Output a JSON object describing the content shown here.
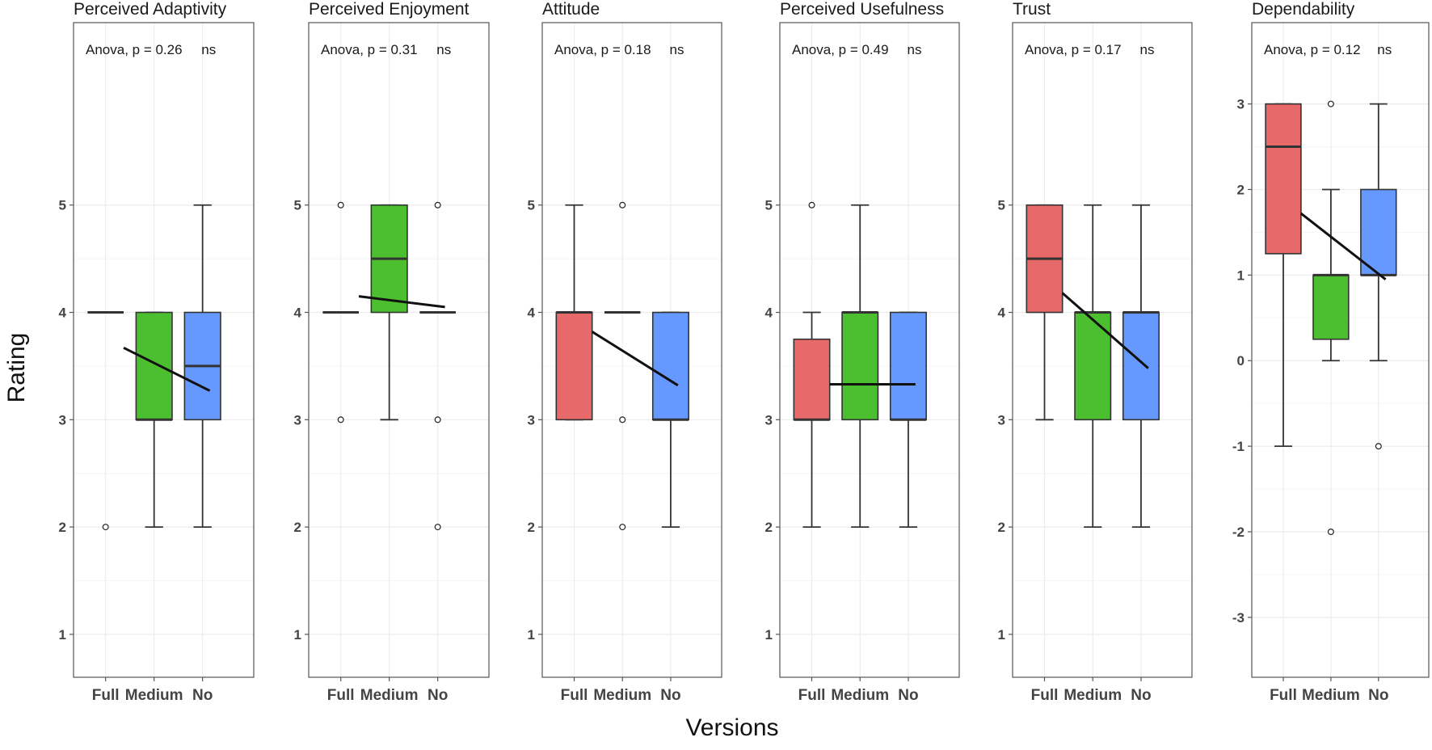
{
  "chart_data": {
    "type": "box",
    "xlabel": "Versions",
    "ylabel": "Rating",
    "categories": [
      "Full",
      "Medium",
      "No"
    ],
    "colors": {
      "Full": "#E8696A",
      "Medium": "#4BBF30",
      "No": "#6699FF"
    },
    "panels": [
      {
        "title": "Perceived Adaptivity",
        "annotation": "Anova, p = 0.26",
        "significance": "ns",
        "ylim": [
          0.6,
          6.7
        ],
        "yticks": [
          "1",
          "2",
          "3",
          "4",
          "5"
        ],
        "boxes": [
          {
            "category": "Full",
            "min": 4,
            "q1": 4,
            "median": 4,
            "q3": 4,
            "max": 4,
            "outliers": [
              2
            ]
          },
          {
            "category": "Medium",
            "min": 2,
            "q1": 3,
            "median": 3,
            "q3": 4,
            "max": 4,
            "outliers": []
          },
          {
            "category": "No",
            "min": 2,
            "q1": 3,
            "median": 3.5,
            "q3": 4,
            "max": 5,
            "outliers": []
          }
        ],
        "trend": [
          3.67,
          3.27
        ]
      },
      {
        "title": "Perceived Enjoyment",
        "annotation": "Anova, p = 0.31",
        "significance": "ns",
        "ylim": [
          0.6,
          6.7
        ],
        "yticks": [
          "1",
          "2",
          "3",
          "4",
          "5"
        ],
        "boxes": [
          {
            "category": "Full",
            "min": 4,
            "q1": 4,
            "median": 4,
            "q3": 4,
            "max": 4,
            "outliers": [
              5,
              3
            ]
          },
          {
            "category": "Medium",
            "min": 3,
            "q1": 4,
            "median": 4.5,
            "q3": 5,
            "max": 5,
            "outliers": []
          },
          {
            "category": "No",
            "min": 4,
            "q1": 4,
            "median": 4,
            "q3": 4,
            "max": 4,
            "outliers": [
              5,
              3,
              2
            ]
          }
        ],
        "trend": [
          4.15,
          4.05
        ]
      },
      {
        "title": "Attitude",
        "annotation": "Anova, p = 0.18",
        "significance": "ns",
        "ylim": [
          0.6,
          6.7
        ],
        "yticks": [
          "1",
          "2",
          "3",
          "4",
          "5"
        ],
        "boxes": [
          {
            "category": "Full",
            "min": 3,
            "q1": 3,
            "median": 4,
            "q3": 4,
            "max": 5,
            "outliers": []
          },
          {
            "category": "Medium",
            "min": 4,
            "q1": 4,
            "median": 4,
            "q3": 4,
            "max": 4,
            "outliers": [
              5,
              3,
              2
            ]
          },
          {
            "category": "No",
            "min": 2,
            "q1": 3,
            "median": 3,
            "q3": 4,
            "max": 4,
            "outliers": []
          }
        ],
        "trend": [
          3.82,
          3.32
        ]
      },
      {
        "title": "Perceived Usefulness",
        "annotation": "Anova, p = 0.49",
        "significance": "ns",
        "ylim": [
          0.6,
          6.7
        ],
        "yticks": [
          "1",
          "2",
          "3",
          "4",
          "5"
        ],
        "boxes": [
          {
            "category": "Full",
            "min": 2,
            "q1": 3,
            "median": 3,
            "q3": 3.75,
            "max": 4,
            "outliers": [
              5
            ]
          },
          {
            "category": "Medium",
            "min": 2,
            "q1": 3,
            "median": 4,
            "q3": 4,
            "max": 5,
            "outliers": []
          },
          {
            "category": "No",
            "min": 2,
            "q1": 3,
            "median": 3,
            "q3": 4,
            "max": 4,
            "outliers": []
          }
        ],
        "trend": [
          3.33,
          3.33
        ]
      },
      {
        "title": "Trust",
        "annotation": "Anova, p = 0.17",
        "significance": "ns",
        "ylim": [
          0.6,
          6.7
        ],
        "yticks": [
          "1",
          "2",
          "3",
          "4",
          "5"
        ],
        "boxes": [
          {
            "category": "Full",
            "min": 3,
            "q1": 4,
            "median": 4.5,
            "q3": 5,
            "max": 5,
            "outliers": []
          },
          {
            "category": "Medium",
            "min": 2,
            "q1": 3,
            "median": 4,
            "q3": 4,
            "max": 5,
            "outliers": []
          },
          {
            "category": "No",
            "min": 2,
            "q1": 3,
            "median": 4,
            "q3": 4,
            "max": 5,
            "outliers": []
          }
        ],
        "trend": [
          4.18,
          3.48
        ]
      },
      {
        "title": "Dependability",
        "annotation": "Anova, p = 0.12",
        "significance": "ns",
        "ylim": [
          -3.7,
          3.95
        ],
        "yticks": [
          "-3",
          "-2",
          "-1",
          "0",
          "1",
          "2",
          "3"
        ],
        "boxes": [
          {
            "category": "Full",
            "min": -1,
            "q1": 1.25,
            "median": 2.5,
            "q3": 3,
            "max": 3,
            "outliers": []
          },
          {
            "category": "Medium",
            "min": 0,
            "q1": 0.25,
            "median": 1,
            "q3": 1,
            "max": 2,
            "outliers": [
              3,
              -2
            ]
          },
          {
            "category": "No",
            "min": 0,
            "q1": 1,
            "median": 1,
            "q3": 2,
            "max": 3,
            "outliers": [
              -1
            ]
          }
        ],
        "trend": [
          1.72,
          0.95
        ]
      }
    ]
  }
}
